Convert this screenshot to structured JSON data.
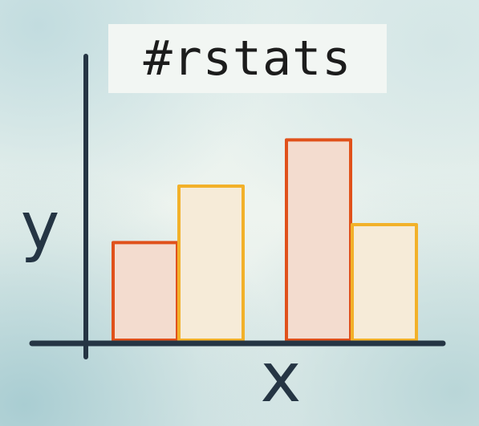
{
  "chart_data": {
    "type": "bar",
    "title": "#rstats",
    "xlabel": "x",
    "ylabel": "y",
    "categories": [
      "",
      "",
      "",
      ""
    ],
    "values": [
      38,
      60,
      78,
      45
    ],
    "ylim": [
      0,
      100
    ],
    "grid": false,
    "colors": {
      "stroke": [
        "#e0511b",
        "#f2b12a",
        "#e0511b",
        "#f2b12a"
      ],
      "fill": [
        "#f3dccf",
        "#f6ebd8",
        "#f3dccf",
        "#f6ebd8"
      ],
      "axis": "#253544"
    }
  }
}
